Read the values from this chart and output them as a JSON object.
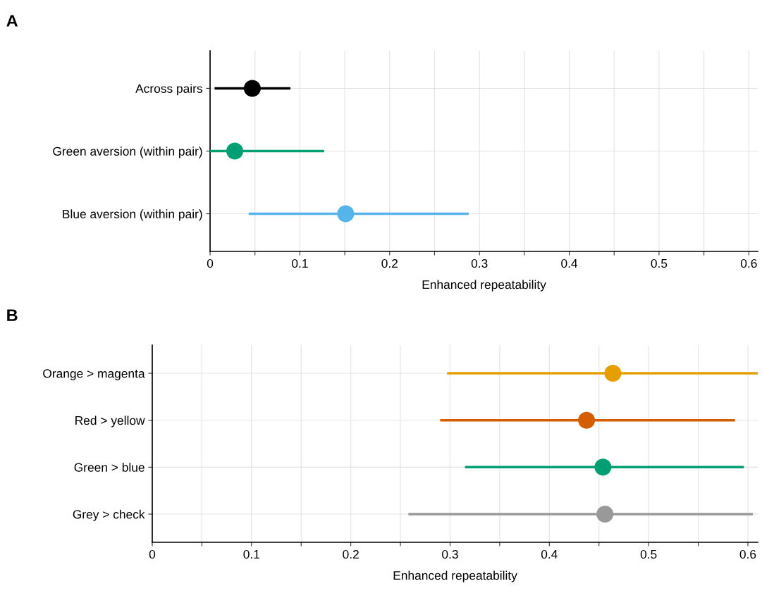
{
  "chart_data": [
    {
      "type": "scatter",
      "title": "A",
      "xlabel": "Enhanced repeatability",
      "categories": [
        "Across pairs",
        "Green aversion (within pair)",
        "Blue aversion (within pair)"
      ],
      "values": [
        0.047,
        0.0275,
        0.151
      ],
      "errors": [
        [
          0.005,
          0.0895
        ],
        [
          0.0,
          0.127
        ],
        [
          0.043,
          0.288
        ]
      ],
      "colors": [
        "#000000",
        "#009e73",
        "#56b4e9"
      ],
      "xlim": [
        0,
        0.61
      ],
      "xticks": [
        0,
        {
          "value": 0.05,
          "label": null
        },
        0.1,
        {
          "value": 0.15,
          "label": null
        },
        0.2,
        {
          "value": 0.25,
          "label": null
        },
        0.3,
        {
          "value": 0.35,
          "label": null
        },
        0.4,
        {
          "value": 0.45,
          "label": null
        },
        0.5,
        {
          "value": 0.55,
          "label": null
        },
        0.6
      ],
      "grid": true,
      "marker": "circle",
      "legend": false,
      "orientation": "horizontal"
    },
    {
      "type": "scatter",
      "title": "B",
      "xlabel": "Enhanced repeatability",
      "categories": [
        "Orange > magenta",
        "Red > yellow",
        "Green > blue",
        "Grey > check"
      ],
      "values": [
        0.464,
        0.4375,
        0.454,
        0.456
      ],
      "errors": [
        [
          0.297,
          0.61
        ],
        [
          0.29,
          0.587
        ],
        [
          0.315,
          0.596
        ],
        [
          0.258,
          0.605
        ]
      ],
      "colors": [
        "#e69f00",
        "#d55e00",
        "#009e73",
        "#999999"
      ],
      "xlim": [
        0,
        0.61
      ],
      "xticks": [
        0,
        {
          "value": 0.05,
          "label": null
        },
        0.1,
        {
          "value": 0.15,
          "label": null
        },
        0.2,
        {
          "value": 0.25,
          "label": null
        },
        0.3,
        {
          "value": 0.35,
          "label": null
        },
        0.4,
        {
          "value": 0.45,
          "label": null
        },
        0.5,
        {
          "value": 0.55,
          "label": null
        },
        0.6
      ],
      "grid": true,
      "marker": "circle",
      "legend": false,
      "orientation": "horizontal"
    }
  ]
}
